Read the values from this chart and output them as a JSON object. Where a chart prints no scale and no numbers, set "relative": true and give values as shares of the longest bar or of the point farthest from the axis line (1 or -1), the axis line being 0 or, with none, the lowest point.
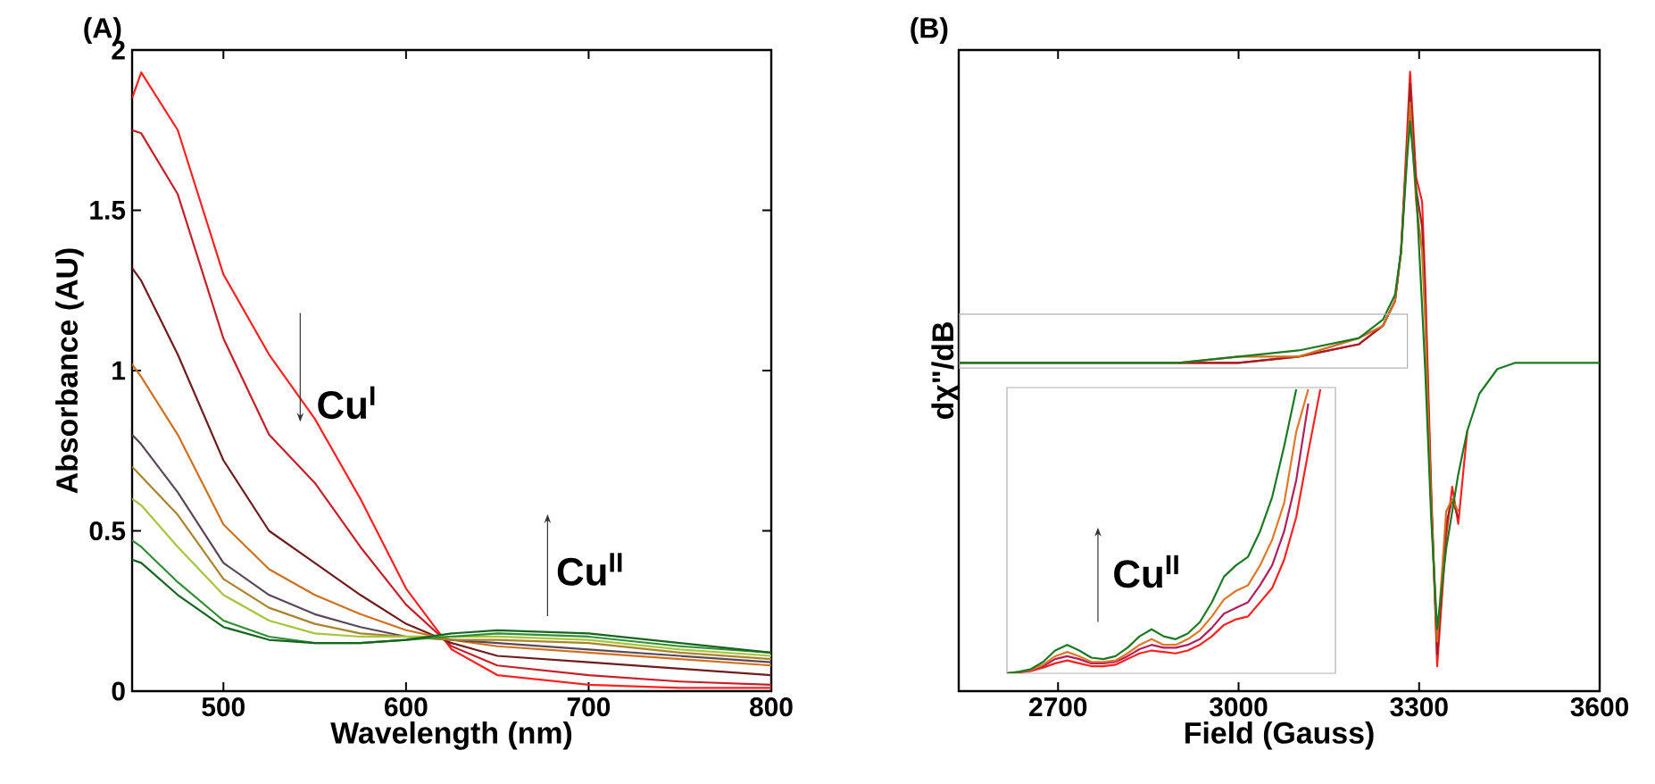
{
  "chart_data": [
    {
      "type": "line",
      "title": "(A)",
      "xlabel": "Wavelength (nm)",
      "ylabel": "Absorbance (AU)",
      "xlim": [
        450,
        800
      ],
      "ylim": [
        0,
        2
      ],
      "xticks": [
        500,
        600,
        700,
        800
      ],
      "yticks": [
        0,
        0.5,
        1,
        1.5,
        2
      ],
      "grid": false,
      "x": [
        450,
        455,
        475,
        500,
        525,
        550,
        575,
        600,
        625,
        650,
        700,
        750,
        800
      ],
      "annotations": [
        "Cu$^{I}$",
        "Cu$^{II}$"
      ],
      "series": [
        {
          "color": "#ff2020",
          "values": [
            1.85,
            1.93,
            1.75,
            1.3,
            1.05,
            0.85,
            0.6,
            0.32,
            0.13,
            0.05,
            0.02,
            0.01,
            0.01
          ]
        },
        {
          "color": "#c81e28",
          "values": [
            1.75,
            1.74,
            1.55,
            1.1,
            0.8,
            0.65,
            0.45,
            0.27,
            0.14,
            0.08,
            0.05,
            0.03,
            0.02
          ]
        },
        {
          "color": "#6e1c1c",
          "values": [
            1.32,
            1.28,
            1.05,
            0.72,
            0.5,
            0.4,
            0.3,
            0.21,
            0.15,
            0.11,
            0.09,
            0.07,
            0.05
          ]
        },
        {
          "color": "#d0701e",
          "values": [
            1.02,
            0.98,
            0.8,
            0.52,
            0.38,
            0.3,
            0.24,
            0.19,
            0.16,
            0.14,
            0.12,
            0.1,
            0.08
          ]
        },
        {
          "color": "#5a4858",
          "values": [
            0.8,
            0.77,
            0.62,
            0.4,
            0.3,
            0.24,
            0.2,
            0.17,
            0.16,
            0.15,
            0.13,
            0.11,
            0.09
          ]
        },
        {
          "color": "#a8842a",
          "values": [
            0.7,
            0.67,
            0.55,
            0.35,
            0.26,
            0.21,
            0.18,
            0.17,
            0.16,
            0.16,
            0.15,
            0.12,
            0.1
          ]
        },
        {
          "color": "#a6c43c",
          "values": [
            0.6,
            0.58,
            0.45,
            0.3,
            0.22,
            0.18,
            0.17,
            0.17,
            0.17,
            0.17,
            0.16,
            0.13,
            0.11
          ]
        },
        {
          "color": "#2f8f34",
          "values": [
            0.47,
            0.45,
            0.34,
            0.22,
            0.17,
            0.15,
            0.15,
            0.16,
            0.17,
            0.18,
            0.17,
            0.14,
            0.12
          ]
        },
        {
          "color": "#16641e",
          "values": [
            0.41,
            0.4,
            0.3,
            0.2,
            0.16,
            0.15,
            0.15,
            0.16,
            0.18,
            0.19,
            0.18,
            0.15,
            0.12
          ]
        }
      ]
    },
    {
      "type": "line",
      "title": "(B)",
      "xlabel": "Field (Gauss)",
      "ylabel": "dχ\"/dB",
      "relative": true,
      "xlim": [
        2535,
        3600
      ],
      "xticks": [
        2700,
        3000,
        3300,
        3600
      ],
      "tick_labels": "x",
      "grid": false,
      "x": [
        2535,
        2700,
        2900,
        3000,
        3100,
        3200,
        3240,
        3260,
        3270,
        3280,
        3285,
        3295,
        3305,
        3310,
        3320,
        3330,
        3345,
        3355,
        3365,
        3380,
        3400,
        3430,
        3460,
        3500,
        3600
      ],
      "series": [
        {
          "color": "#ff2020",
          "values": [
            null,
            null,
            0.53,
            0.53,
            0.54,
            0.56,
            0.59,
            0.63,
            0.71,
            0.9,
            1.0,
            0.83,
            0.79,
            0.66,
            0.33,
            0.04,
            0.25,
            0.33,
            0.27,
            0.42,
            null,
            null,
            null,
            null,
            null
          ]
        },
        {
          "color": "#a01e28",
          "values": [
            0.53,
            0.53,
            0.53,
            0.53,
            0.54,
            0.56,
            0.59,
            0.63,
            0.71,
            0.88,
            0.98,
            0.81,
            0.75,
            0.64,
            0.31,
            0.06,
            0.27,
            0.31,
            0.28,
            null,
            null,
            null,
            null,
            null,
            null
          ]
        },
        {
          "color": "#d0701e",
          "values": [
            null,
            null,
            0.53,
            0.54,
            0.54,
            0.57,
            0.59,
            0.63,
            0.71,
            0.87,
            0.95,
            0.79,
            0.71,
            0.6,
            0.3,
            0.08,
            0.29,
            0.31,
            0.29,
            null,
            null,
            null,
            null,
            null,
            null
          ]
        },
        {
          "color": "#1a7a22",
          "values": [
            0.53,
            0.53,
            0.53,
            0.54,
            0.55,
            0.57,
            0.6,
            0.64,
            0.71,
            0.86,
            0.92,
            0.81,
            0.62,
            0.52,
            0.28,
            0.1,
            0.23,
            0.29,
            0.35,
            0.42,
            0.48,
            0.52,
            0.53,
            0.53,
            0.53
          ]
        }
      ]
    },
    {
      "type": "line",
      "relative": true,
      "tick_labels": false,
      "grid": false,
      "categories": [
        null,
        null,
        null,
        null,
        null,
        null,
        null,
        null,
        null,
        null,
        null,
        null,
        null,
        null,
        null,
        null,
        null,
        null,
        null,
        null,
        null,
        null,
        null,
        null,
        null,
        null,
        null
      ],
      "annotations": [
        "Cu$^{II}$"
      ],
      "series": [
        {
          "color": "#ff2020",
          "values": [
            0,
            0.003,
            0.008,
            0.02,
            0.035,
            0.045,
            0.035,
            0.025,
            0.025,
            0.03,
            0.05,
            0.07,
            0.08,
            0.075,
            0.07,
            0.08,
            0.1,
            0.13,
            0.17,
            0.19,
            0.2,
            0.25,
            0.3,
            0.4,
            0.55,
            0.78,
            1.0
          ]
        },
        {
          "color": "#b0205a",
          "values": [
            0,
            0.004,
            0.01,
            0.025,
            0.05,
            0.06,
            0.05,
            0.035,
            0.035,
            0.04,
            0.06,
            0.085,
            0.1,
            0.09,
            0.09,
            0.1,
            0.12,
            0.16,
            0.21,
            0.23,
            0.25,
            0.31,
            0.38,
            0.5,
            0.68,
            0.95,
            null
          ]
        },
        {
          "color": "#e0782a",
          "values": [
            0,
            0.005,
            0.012,
            0.03,
            0.06,
            0.075,
            0.06,
            0.04,
            0.04,
            0.045,
            0.07,
            0.1,
            0.12,
            0.1,
            0.1,
            0.12,
            0.15,
            0.2,
            0.26,
            0.29,
            0.31,
            0.38,
            0.47,
            0.6,
            0.85,
            1.0,
            null
          ]
        },
        {
          "color": "#1a7a22",
          "values": [
            0,
            0.005,
            0.015,
            0.04,
            0.08,
            0.1,
            0.08,
            0.055,
            0.05,
            0.06,
            0.09,
            0.13,
            0.155,
            0.13,
            0.12,
            0.14,
            0.18,
            0.25,
            0.34,
            0.38,
            0.41,
            0.5,
            0.62,
            0.8,
            1.0,
            null,
            null
          ]
        }
      ]
    }
  ]
}
